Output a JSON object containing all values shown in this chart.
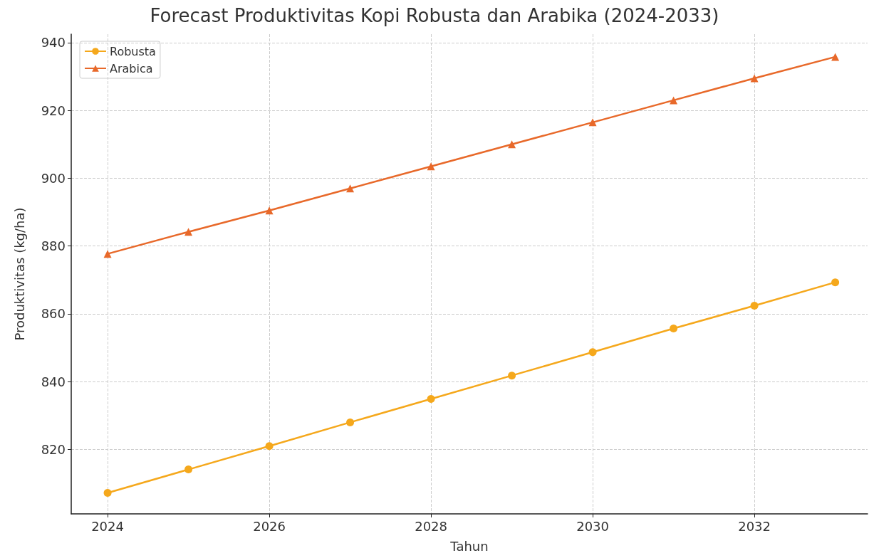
{
  "chart_data": {
    "type": "line",
    "title": "Forecast Produktivitas Kopi Robusta dan Arabika (2024-2033)",
    "xlabel": "Tahun",
    "ylabel": "Produktivitas (kg/ha)",
    "x": [
      2024,
      2025,
      2026,
      2027,
      2028,
      2029,
      2030,
      2031,
      2032,
      2033
    ],
    "series": [
      {
        "name": "Robusta",
        "color": "#f5a81c",
        "marker": "circle",
        "values": [
          807.2,
          814.1,
          821.0,
          828.0,
          834.9,
          841.8,
          848.7,
          855.7,
          862.4,
          869.3
        ]
      },
      {
        "name": "Arabica",
        "color": "#e8692a",
        "marker": "triangle",
        "values": [
          877.7,
          884.2,
          890.5,
          897.0,
          903.5,
          910.0,
          916.5,
          923.0,
          929.5,
          935.8
        ]
      }
    ],
    "xlim": [
      2023.55,
      2033.4
    ],
    "xticks": [
      2024,
      2026,
      2028,
      2030,
      2032
    ],
    "ylim": [
      801,
      942.5
    ],
    "yticks": [
      820,
      840,
      860,
      880,
      900,
      920,
      940
    ],
    "grid": true,
    "legend": "top left",
    "line_style": "solid"
  }
}
